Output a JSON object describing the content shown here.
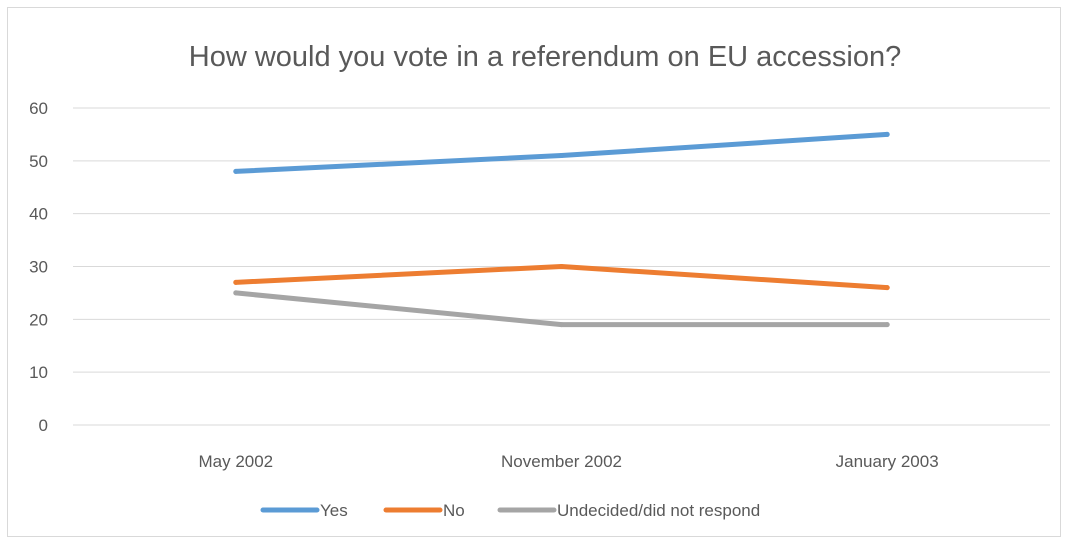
{
  "chart_data": {
    "type": "line",
    "title": "How would you vote in a referendum on EU accession?",
    "xlabel": "",
    "ylabel": "",
    "categories": [
      "May 2002",
      "November 2002",
      "January 2003"
    ],
    "ylim": [
      0,
      60
    ],
    "yticks": [
      "0",
      "10",
      "20",
      "30",
      "40",
      "50",
      "60"
    ],
    "grid": true,
    "legend_position": "bottom",
    "series": [
      {
        "name": "Yes",
        "values": [
          48,
          51,
          55
        ],
        "color": "#5b9bd5"
      },
      {
        "name": "No",
        "values": [
          27,
          30,
          26
        ],
        "color": "#ed7d31"
      },
      {
        "name": "Undecided/did not respond",
        "values": [
          25,
          19,
          19
        ],
        "color": "#a5a5a5"
      }
    ]
  }
}
